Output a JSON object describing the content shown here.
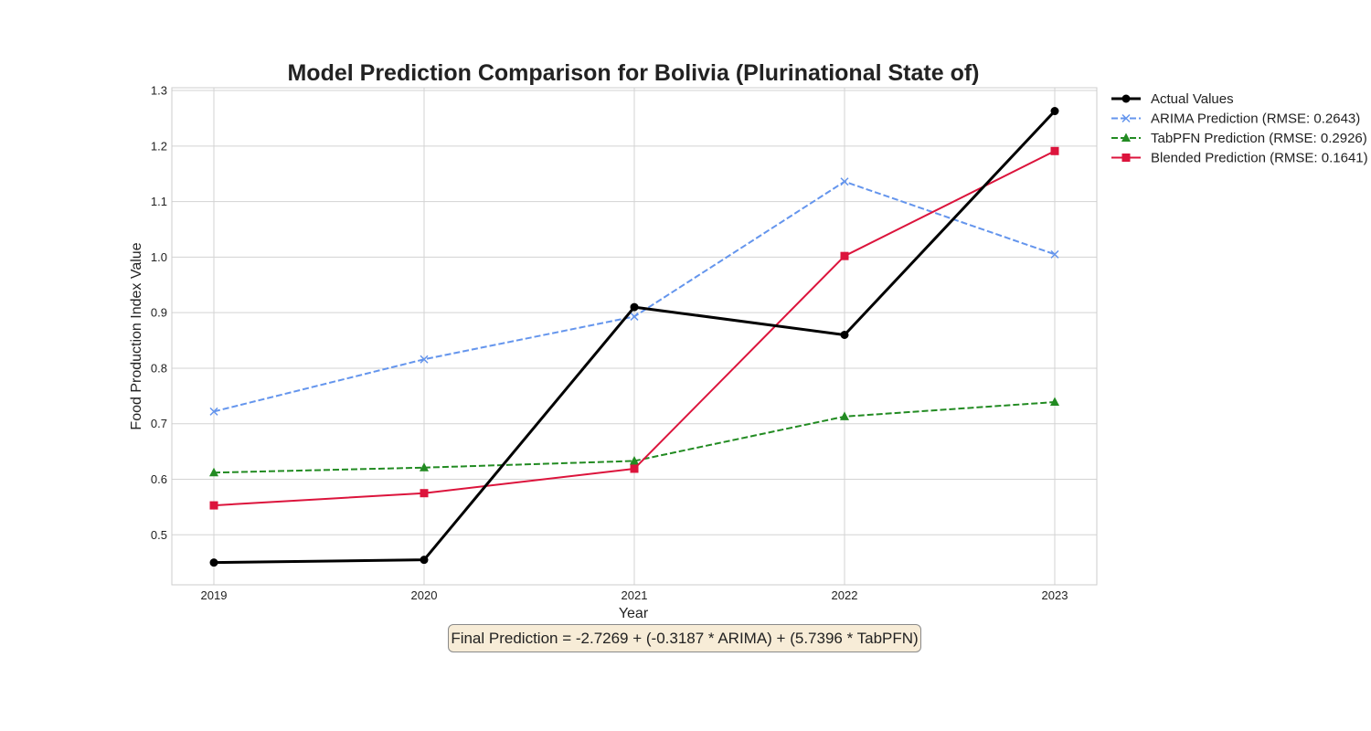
{
  "chart_data": {
    "type": "line",
    "title": "Model Prediction Comparison for Bolivia (Plurinational State of)",
    "xlabel": "Year",
    "ylabel": "Food Production Index Value",
    "x": [
      "2019",
      "2020",
      "2021",
      "2022",
      "2023"
    ],
    "ylim": [
      0.41,
      1.305
    ],
    "yticks": [
      "0.5",
      "0.6",
      "0.7",
      "0.8",
      "0.9",
      "1.0",
      "1.1",
      "1.2",
      "1.3"
    ],
    "grid": true,
    "legend_position": "outside-right",
    "series": [
      {
        "name": "Actual Values",
        "values": [
          0.45,
          0.455,
          0.91,
          0.86,
          1.263
        ],
        "color": "#000000",
        "dash": "solid",
        "marker": "circle"
      },
      {
        "name": "ARIMA Prediction (RMSE: 0.2643)",
        "values": [
          0.722,
          0.816,
          0.893,
          1.136,
          1.005
        ],
        "color": "#6495ed",
        "dash": "dashed",
        "marker": "x"
      },
      {
        "name": "TabPFN Prediction (RMSE: 0.2926)",
        "values": [
          0.612,
          0.621,
          0.633,
          0.713,
          0.739
        ],
        "color": "#228b22",
        "dash": "dashed",
        "marker": "triangle"
      },
      {
        "name": "Blended Prediction (RMSE: 0.1641)",
        "values": [
          0.553,
          0.575,
          0.619,
          1.002,
          1.191
        ],
        "color": "#dc143c",
        "dash": "solid",
        "marker": "square"
      }
    ],
    "annotation": "Final Prediction = -2.7269 + (-0.3187 * ARIMA) + (5.7396 * TabPFN)"
  }
}
